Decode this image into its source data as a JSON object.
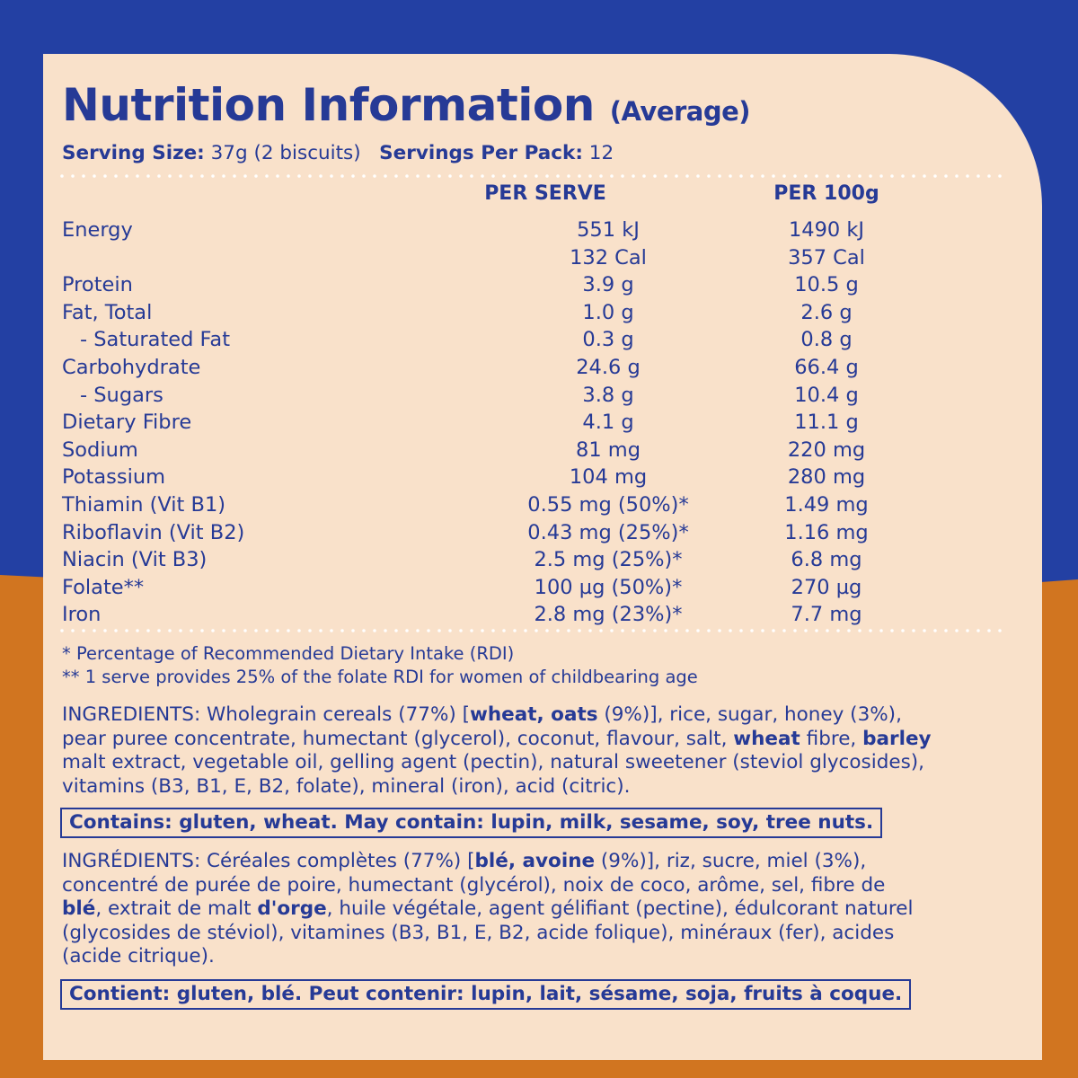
{
  "title": "Nutrition Information",
  "title_suffix": "(Average)",
  "serving": {
    "size_label": "Serving Size:",
    "size_value": " 37g (2 biscuits)",
    "per_pack_label": "Servings Per Pack:",
    "per_pack_value": " 12"
  },
  "columns": {
    "per_serve": "PER SERVE",
    "per_100g": "PER 100g"
  },
  "rows": [
    {
      "name": "Energy",
      "per_serve": "551 kJ",
      "per_100g": "1490 kJ"
    },
    {
      "name": "",
      "per_serve": "132 Cal",
      "per_100g": "357 Cal"
    },
    {
      "name": "Protein",
      "per_serve": "3.9 g",
      "per_100g": "10.5 g"
    },
    {
      "name": "Fat, Total",
      "per_serve": "1.0 g",
      "per_100g": "2.6 g"
    },
    {
      "name": "- Saturated Fat",
      "per_serve": "0.3 g",
      "per_100g": "0.8 g"
    },
    {
      "name": "Carbohydrate",
      "per_serve": "24.6 g",
      "per_100g": "66.4 g"
    },
    {
      "name": "- Sugars",
      "per_serve": "3.8 g",
      "per_100g": "10.4 g"
    },
    {
      "name": "Dietary Fibre",
      "per_serve": "4.1 g",
      "per_100g": "11.1 g"
    },
    {
      "name": "Sodium",
      "per_serve": "81 mg",
      "per_100g": "220 mg"
    },
    {
      "name": "Potassium",
      "per_serve": "104 mg",
      "per_100g": "280 mg"
    },
    {
      "name": "Thiamin (Vit B1)",
      "per_serve": "0.55 mg (50%)*",
      "per_100g": "1.49 mg"
    },
    {
      "name": "Riboflavin (Vit B2)",
      "per_serve": "0.43 mg (25%)*",
      "per_100g": "1.16 mg"
    },
    {
      "name": "Niacin (Vit B3)",
      "per_serve": "2.5 mg (25%)*",
      "per_100g": "6.8 mg"
    },
    {
      "name": "Folate**",
      "per_serve": "100 µg (50%)*",
      "per_100g": "270 µg"
    },
    {
      "name": "Iron",
      "per_serve": "2.8 mg (23%)*",
      "per_100g": "7.7 mg"
    }
  ],
  "footnotes": {
    "rdi": "* Percentage of Recommended Dietary Intake (RDI)",
    "folate": "** 1 serve provides 25% of the folate RDI for women of childbearing age"
  },
  "ingredients_en": [
    [
      {
        "t": "INGREDIENTS: Wholegrain cereals (77%) ["
      },
      {
        "t": "wheat, oats",
        "b": true
      },
      {
        "t": " (9%)], rice, sugar, honey (3%),"
      }
    ],
    [
      {
        "t": "pear puree concentrate, humectant (glycerol), coconut, flavour, salt, "
      },
      {
        "t": "wheat",
        "b": true
      },
      {
        "t": " fibre, "
      },
      {
        "t": "barley",
        "b": true
      }
    ],
    [
      {
        "t": "malt extract, vegetable oil, gelling agent (pectin), natural sweetener (steviol glycosides),"
      }
    ],
    [
      {
        "t": "vitamins (B3, B1, E, B2, folate), mineral (iron), acid (citric)."
      }
    ]
  ],
  "contains_en": "Contains: gluten, wheat. May contain: lupin, milk, sesame, soy, tree nuts.",
  "ingredients_fr": [
    [
      {
        "t": "INGRÉDIENTS: Céréales complètes (77%) ["
      },
      {
        "t": "blé, avoine",
        "b": true
      },
      {
        "t": " (9%)], riz, sucre, miel (3%),"
      }
    ],
    [
      {
        "t": "concentré de purée de poire, humectant (glycérol), noix de coco, arôme, sel, fibre de"
      }
    ],
    [
      {
        "t": "blé",
        "b": true
      },
      {
        "t": ", extrait de malt "
      },
      {
        "t": "d'orge",
        "b": true
      },
      {
        "t": ", huile végétale, agent gélifiant (pectine), édulcorant naturel"
      }
    ],
    [
      {
        "t": "(glycosides de stéviol), vitamines (B3, B1, E, B2, acide folique), minéraux (fer), acides"
      }
    ],
    [
      {
        "t": "(acide citrique)."
      }
    ]
  ],
  "contains_fr": "Contient: gluten, blé. Peut contenir: lupin, lait, sésame, soja, fruits à coque.",
  "colors": {
    "blue": "#263a96",
    "royal": "#2340a3",
    "orange": "#d17520",
    "cream": "#f9e1ca"
  }
}
